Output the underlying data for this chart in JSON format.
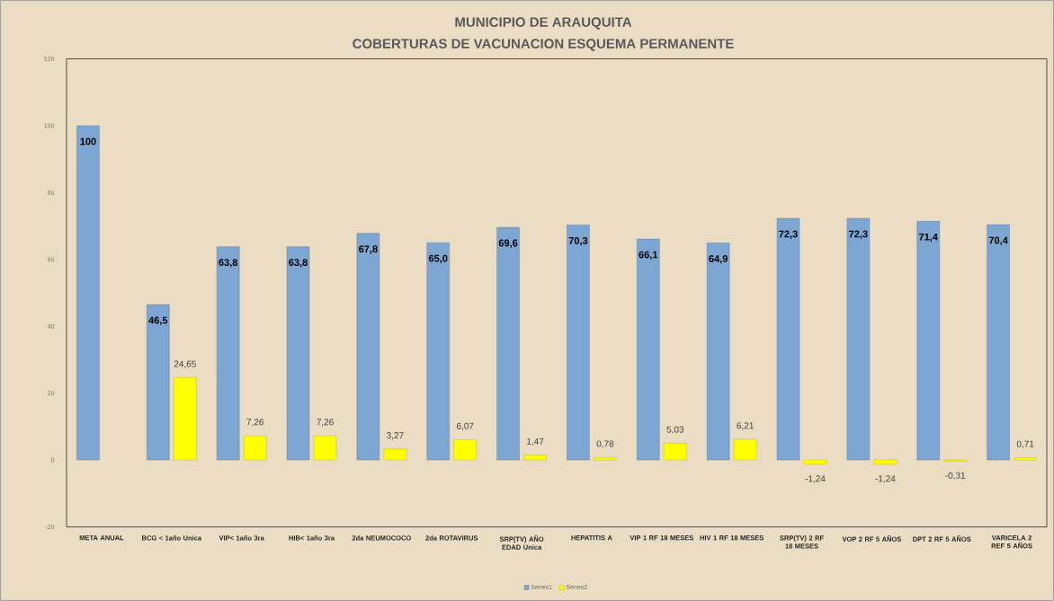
{
  "chart_data": {
    "type": "bar",
    "title": "MUNICIPIO DE ARAUQUITA",
    "subtitle": "COBERTURAS DE VACUNACION ESQUEMA PERMANENTE",
    "categories": [
      "META ANUAL",
      "BCG < 1año Unica",
      "VIP< 1año 3ra",
      "HIB< 1año 3ra",
      "2da NEUMOCOCO",
      "2da ROTAVIRUS",
      "SRP(TV) AÑO EDAD Unica",
      "HEPATITIS A",
      "VIP 1 RF 18 MESES",
      "HIV 1 RF 18 MESES",
      "SRP(TV) 2 RF 18 MESES",
      "VOP 2 RF 5 AÑOS",
      "DPT 2 RF 5 AÑOS",
      "VARICELA 2 REF 5 AÑOS"
    ],
    "series": [
      {
        "name": "Series1",
        "color": "#7da6d3",
        "values": [
          100,
          46.5,
          63.8,
          63.8,
          67.8,
          65.0,
          69.6,
          70.3,
          66.1,
          64.9,
          72.3,
          72.3,
          71.4,
          70.4
        ],
        "value_labels": [
          "100",
          "46,5",
          "63,8",
          "63,8",
          "67,8",
          "65,0",
          "69,6",
          "70,3",
          "66,1",
          "64,9",
          "72,3",
          "72,3",
          "71,4",
          "70,4"
        ]
      },
      {
        "name": "Series2",
        "color": "#ffff00",
        "values": [
          null,
          24.65,
          7.26,
          7.26,
          3.27,
          6.07,
          1.47,
          0.78,
          5.03,
          6.21,
          -1.24,
          -1.24,
          -0.31,
          0.71
        ],
        "value_labels": [
          null,
          "24,65",
          "7,26",
          "7,26",
          "3,27",
          "6,07",
          "1,47",
          "0,78",
          "5,03",
          "6,21",
          "-1,24",
          "-1,24",
          "-0,31",
          "0,71"
        ]
      }
    ],
    "ylim": [
      -20,
      120
    ],
    "yticks": [
      -20,
      0,
      20,
      40,
      60,
      80,
      100,
      120
    ],
    "legend": "bottom"
  }
}
